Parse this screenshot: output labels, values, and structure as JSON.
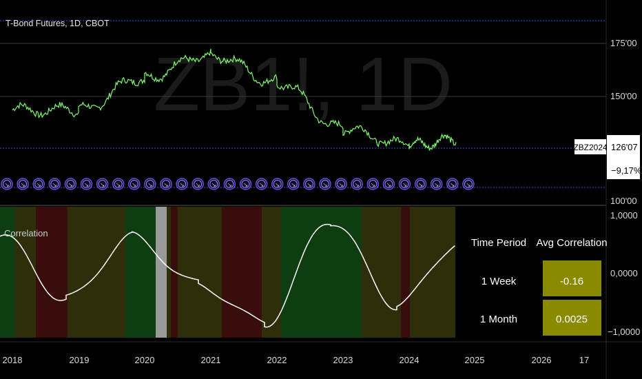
{
  "header": {
    "title": "T-Bond Futures, 1D, CBOT",
    "watermark": "ZB1!, 1D"
  },
  "price_pane": {
    "y_ticks": [
      "175'00",
      "150'00",
      "100'00"
    ],
    "symbol_badge": "ZBZ2024",
    "last_price": "126'07",
    "change_pct": "−9,17%",
    "marker_glyph": "↘",
    "marker_count": 30
  },
  "indicator_pane": {
    "label": "Correlation",
    "y_ticks": [
      "1,0000",
      "0,0000",
      "−1,0000"
    ]
  },
  "x_axis": {
    "labels": [
      "2018",
      "2019",
      "2020",
      "2021",
      "2022",
      "2023",
      "2024",
      "2025",
      "2026",
      "17"
    ]
  },
  "table": {
    "headers": [
      "Time Period",
      "Avg Correlation"
    ],
    "rows": [
      {
        "period": "1 Week",
        "value": "-0.16"
      },
      {
        "period": "1 Month",
        "value": "0.0025"
      }
    ]
  },
  "colors": {
    "price_line": "#7CFC6A",
    "correlation_line": "#FFFFFF",
    "reference_line": "#3f4fd8",
    "marker_stroke": "#6a4fe0",
    "table_cell_bg": "#8a8a00",
    "band_green": "#0f3d12",
    "band_red": "#3a0d0d",
    "band_olive": "#2e2e0a"
  },
  "chart_data": {
    "type": "line",
    "x": [
      "2018",
      "2019",
      "2020",
      "2021",
      "2022",
      "2023",
      "2024",
      "2025"
    ],
    "series": [
      {
        "name": "T-Bond Futures",
        "values": [
          143,
          143,
          162,
          175,
          159,
          132,
          123,
          126.2
        ]
      },
      {
        "name": "Correlation",
        "values": [
          0.6,
          -0.45,
          0.6,
          -0.2,
          -0.85,
          0.85,
          -0.55,
          0.55
        ]
      }
    ],
    "ylim_price": [
      95,
      190
    ],
    "ylim_correlation": [
      -1,
      1
    ]
  }
}
